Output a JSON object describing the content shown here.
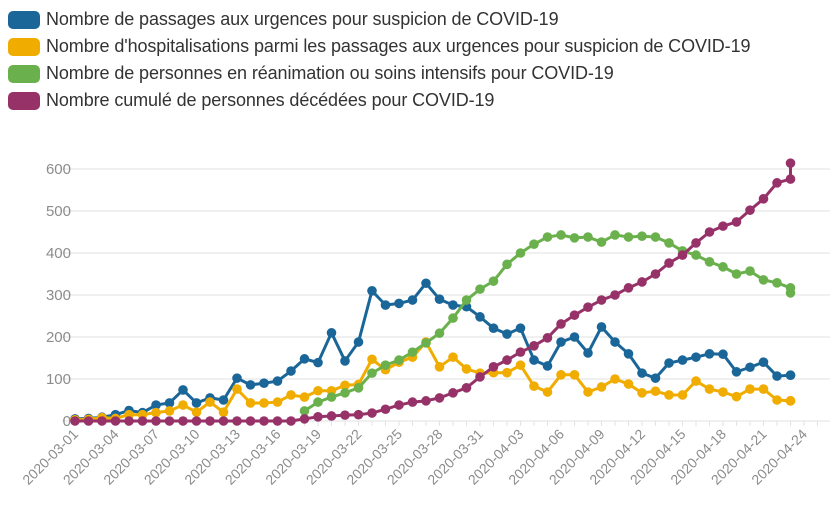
{
  "chart_data": {
    "type": "line",
    "title": "",
    "xlabel": "",
    "ylabel": "",
    "ylim": [
      0,
      600
    ],
    "yticks": [
      0,
      100,
      200,
      300,
      400,
      500,
      600
    ],
    "x_start": "2020-03-01",
    "x_end": "2020-04-24",
    "xtick_labels": [
      "2020-03-01",
      "2020-03-04",
      "2020-03-07",
      "2020-03-10",
      "2020-03-13",
      "2020-03-16",
      "2020-03-19",
      "2020-03-22",
      "2020-03-25",
      "2020-03-28",
      "2020-03-31",
      "2020-04-03",
      "2020-04-06",
      "2020-04-09",
      "2020-04-12",
      "2020-04-15",
      "2020-04-18",
      "2020-04-21",
      "2020-04-24"
    ],
    "grid": true,
    "legend_position": "top-left",
    "series": [
      {
        "name": "Nombre de passages aux urgences pour suspicion de COVID-19",
        "color": "#1b6698",
        "start": "2020-03-01",
        "values": [
          5,
          6,
          9,
          15,
          25,
          20,
          38,
          43,
          74,
          43,
          55,
          50,
          102,
          86,
          90,
          95,
          119,
          148,
          139,
          210,
          143,
          188,
          310,
          276,
          280,
          288,
          328,
          290,
          276,
          272,
          248,
          221,
          207,
          221,
          145,
          131,
          188,
          200,
          162,
          224,
          188,
          160,
          114,
          102,
          138,
          145,
          152,
          160,
          159,
          117,
          128,
          140,
          107,
          109,
          109
        ]
      },
      {
        "name": "Nombre d'hospitalisations parmi les passages aux urgences pour suspicion de COVID-19",
        "color": "#f0ad00",
        "start": "2020-03-01",
        "values": [
          3,
          4,
          8,
          6,
          15,
          15,
          20,
          24,
          38,
          21,
          45,
          21,
          76,
          43,
          43,
          45,
          62,
          57,
          72,
          72,
          85,
          87,
          147,
          122,
          140,
          152,
          188,
          129,
          152,
          124,
          114,
          115,
          115,
          133,
          83,
          69,
          110,
          110,
          69,
          81,
          100,
          88,
          67,
          71,
          62,
          62,
          95,
          76,
          69,
          58,
          76,
          76,
          50,
          48,
          48
        ]
      },
      {
        "name": "Nombre de personnes en réanimation ou soins intensifs pour COVID-19",
        "color": "#6ab04c",
        "start": "2020-03-18",
        "values": [
          24,
          45,
          57,
          67,
          79,
          114,
          133,
          145,
          164,
          186,
          209,
          245,
          288,
          314,
          333,
          373,
          400,
          421,
          438,
          443,
          436,
          438,
          426,
          443,
          438,
          440,
          438,
          424,
          405,
          395,
          379,
          367,
          350,
          357,
          336,
          329,
          317,
          305
        ]
      },
      {
        "name": "Nombre cumulé de personnes décédées pour COVID-19",
        "color": "#973269",
        "start": "2020-03-01",
        "values": [
          0,
          0,
          0,
          0,
          0,
          0,
          0,
          0,
          0,
          0,
          0,
          0,
          0,
          0,
          0,
          0,
          0,
          5,
          10,
          12,
          14,
          15,
          19,
          28,
          38,
          45,
          48,
          55,
          67,
          79,
          105,
          129,
          145,
          164,
          179,
          198,
          231,
          252,
          271,
          288,
          300,
          317,
          331,
          350,
          376,
          395,
          424,
          450,
          464,
          474,
          502,
          529,
          567,
          576,
          614
        ]
      }
    ]
  },
  "legend": {
    "items": [
      {
        "label": "Nombre de passages aux urgences pour suspicion de COVID-19",
        "color": "#1b6698"
      },
      {
        "label": "Nombre d'hospitalisations parmi les passages aux urgences pour suspicion de COVID-19",
        "color": "#f0ad00"
      },
      {
        "label": "Nombre de personnes en réanimation ou soins intensifs pour COVID-19",
        "color": "#6ab04c"
      },
      {
        "label": "Nombre cumulé de personnes décédées pour COVID-19",
        "color": "#973269"
      }
    ]
  }
}
